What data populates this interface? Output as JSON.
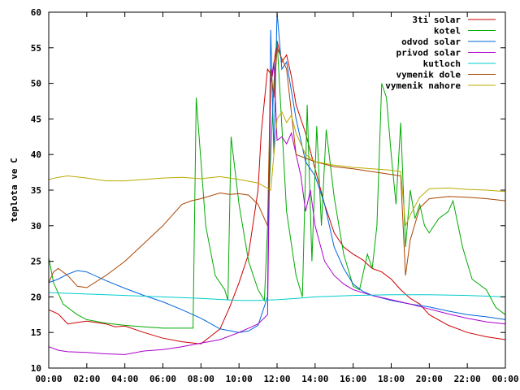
{
  "chart_data": {
    "type": "line",
    "title": "",
    "xlabel": "",
    "ylabel": "teplota ve C",
    "xlim": [
      "00:00",
      "24:00"
    ],
    "ylim": [
      10,
      60
    ],
    "x_ticks": [
      "00:00",
      "02:00",
      "04:00",
      "06:00",
      "08:00",
      "10:00",
      "12:00",
      "14:00",
      "16:00",
      "18:00",
      "20:00",
      "22:00",
      "00:00"
    ],
    "y_ticks": [
      "10",
      "15",
      "20",
      "25",
      "30",
      "35",
      "40",
      "45",
      "50",
      "55",
      "60"
    ],
    "grid": false,
    "legend_position": "top-right",
    "series": [
      {
        "name": "3ti solar",
        "color": "#cc0000",
        "points": [
          [
            "00:00",
            18.2
          ],
          [
            "00:30",
            17.6
          ],
          [
            "01:00",
            16.2
          ],
          [
            "01:30",
            16.4
          ],
          [
            "02:00",
            16.6
          ],
          [
            "03:00",
            16.2
          ],
          [
            "03:30",
            15.8
          ],
          [
            "04:00",
            15.9
          ],
          [
            "05:00",
            15.0
          ],
          [
            "06:00",
            14.2
          ],
          [
            "07:00",
            13.7
          ],
          [
            "08:00",
            13.4
          ],
          [
            "09:00",
            15.5
          ],
          [
            "09:30",
            18.5
          ],
          [
            "10:00",
            22.0
          ],
          [
            "10:30",
            26.0
          ],
          [
            "11:00",
            35.0
          ],
          [
            "11:10",
            43.0
          ],
          [
            "11:30",
            52.0
          ],
          [
            "11:45",
            51.0
          ],
          [
            "12:00",
            56.0
          ],
          [
            "12:15",
            53.0
          ],
          [
            "12:30",
            54.0
          ],
          [
            "12:45",
            51.0
          ],
          [
            "13:00",
            47.0
          ],
          [
            "13:30",
            43.0
          ],
          [
            "14:00",
            38.0
          ],
          [
            "14:30",
            33.0
          ],
          [
            "15:00",
            29.0
          ],
          [
            "15:30",
            27.0
          ],
          [
            "16:00",
            26.0
          ],
          [
            "16:30",
            25.2
          ],
          [
            "17:00",
            24.0
          ],
          [
            "17:30",
            23.5
          ],
          [
            "18:00",
            22.5
          ],
          [
            "18:30",
            21.0
          ],
          [
            "19:00",
            19.8
          ],
          [
            "19:30",
            19.0
          ],
          [
            "20:00",
            17.5
          ],
          [
            "21:00",
            16.0
          ],
          [
            "22:00",
            15.0
          ],
          [
            "23:00",
            14.4
          ],
          [
            "24:00",
            14.0
          ]
        ]
      },
      {
        "name": "kotel",
        "color": "#00aa00",
        "points": [
          [
            "00:00",
            25.5
          ],
          [
            "00:15",
            22.0
          ],
          [
            "00:45",
            19.0
          ],
          [
            "01:30",
            17.5
          ],
          [
            "02:00",
            16.8
          ],
          [
            "03:00",
            16.3
          ],
          [
            "04:00",
            16.0
          ],
          [
            "05:00",
            15.8
          ],
          [
            "06:00",
            15.6
          ],
          [
            "07:00",
            15.6
          ],
          [
            "07:35",
            15.6
          ],
          [
            "07:45",
            48.0
          ],
          [
            "08:15",
            30.0
          ],
          [
            "08:45",
            23.0
          ],
          [
            "09:15",
            21.0
          ],
          [
            "09:25",
            19.5
          ],
          [
            "09:35",
            42.5
          ],
          [
            "10:00",
            33.0
          ],
          [
            "10:30",
            25.0
          ],
          [
            "11:00",
            21.0
          ],
          [
            "11:20",
            19.5
          ],
          [
            "11:40",
            40.0
          ],
          [
            "11:50",
            50.0
          ],
          [
            "12:00",
            56.0
          ],
          [
            "12:15",
            44.0
          ],
          [
            "12:30",
            32.0
          ],
          [
            "13:00",
            23.0
          ],
          [
            "13:20",
            20.0
          ],
          [
            "13:35",
            47.0
          ],
          [
            "13:50",
            25.0
          ],
          [
            "14:05",
            44.0
          ],
          [
            "14:20",
            30.0
          ],
          [
            "14:35",
            43.5
          ],
          [
            "15:00",
            34.0
          ],
          [
            "15:30",
            26.0
          ],
          [
            "16:00",
            21.5
          ],
          [
            "16:20",
            21.0
          ],
          [
            "16:45",
            26.0
          ],
          [
            "17:00",
            24.0
          ],
          [
            "17:15",
            30.0
          ],
          [
            "17:30",
            50.0
          ],
          [
            "17:45",
            48.0
          ],
          [
            "18:00",
            40.0
          ],
          [
            "18:15",
            33.0
          ],
          [
            "18:30",
            44.5
          ],
          [
            "18:45",
            27.0
          ],
          [
            "19:00",
            35.0
          ],
          [
            "19:15",
            31.0
          ],
          [
            "19:30",
            33.0
          ],
          [
            "19:45",
            30.0
          ],
          [
            "20:00",
            29.0
          ],
          [
            "20:30",
            31.0
          ],
          [
            "21:00",
            32.0
          ],
          [
            "21:15",
            33.5
          ],
          [
            "21:45",
            27.0
          ],
          [
            "22:15",
            22.5
          ],
          [
            "23:00",
            21.0
          ],
          [
            "23:30",
            18.5
          ],
          [
            "24:00",
            17.5
          ]
        ]
      },
      {
        "name": "odvod solar",
        "color": "#0066dd",
        "points": [
          [
            "00:00",
            22.0
          ],
          [
            "00:30",
            22.5
          ],
          [
            "01:00",
            23.2
          ],
          [
            "01:30",
            23.7
          ],
          [
            "02:00",
            23.5
          ],
          [
            "03:00",
            22.3
          ],
          [
            "04:00",
            21.2
          ],
          [
            "05:00",
            20.2
          ],
          [
            "06:00",
            19.3
          ],
          [
            "07:00",
            18.2
          ],
          [
            "08:00",
            17.0
          ],
          [
            "09:00",
            15.5
          ],
          [
            "10:00",
            15.0
          ],
          [
            "10:30",
            15.2
          ],
          [
            "11:00",
            16.0
          ],
          [
            "11:30",
            20.0
          ],
          [
            "11:40",
            57.5
          ],
          [
            "11:50",
            40.0
          ],
          [
            "12:00",
            60.0
          ],
          [
            "12:15",
            52.0
          ],
          [
            "12:30",
            53.0
          ],
          [
            "13:00",
            45.0
          ],
          [
            "13:30",
            39.0
          ],
          [
            "14:00",
            37.0
          ],
          [
            "14:30",
            33.0
          ],
          [
            "15:00",
            27.0
          ],
          [
            "15:30",
            24.0
          ],
          [
            "16:00",
            21.8
          ],
          [
            "16:30",
            20.8
          ],
          [
            "17:00",
            20.2
          ],
          [
            "18:00",
            19.5
          ],
          [
            "19:00",
            19.0
          ],
          [
            "20:00",
            18.6
          ],
          [
            "21:00",
            18.0
          ],
          [
            "22:00",
            17.5
          ],
          [
            "23:00",
            17.2
          ],
          [
            "24:00",
            16.8
          ]
        ]
      },
      {
        "name": "privod solar",
        "color": "#aa00cc",
        "points": [
          [
            "00:00",
            13.0
          ],
          [
            "00:30",
            12.5
          ],
          [
            "01:00",
            12.3
          ],
          [
            "02:00",
            12.2
          ],
          [
            "03:00",
            12.0
          ],
          [
            "04:00",
            11.9
          ],
          [
            "05:00",
            12.4
          ],
          [
            "06:00",
            12.6
          ],
          [
            "07:00",
            13.0
          ],
          [
            "08:00",
            13.5
          ],
          [
            "09:00",
            14.0
          ],
          [
            "10:00",
            15.0
          ],
          [
            "11:00",
            16.2
          ],
          [
            "11:30",
            17.5
          ],
          [
            "11:40",
            50.0
          ],
          [
            "11:50",
            53.0
          ],
          [
            "12:00",
            42.0
          ],
          [
            "12:15",
            42.5
          ],
          [
            "12:30",
            41.5
          ],
          [
            "12:45",
            43.0
          ],
          [
            "13:00",
            40.0
          ],
          [
            "13:15",
            37.0
          ],
          [
            "13:30",
            32.0
          ],
          [
            "13:45",
            35.0
          ],
          [
            "14:00",
            30.0
          ],
          [
            "14:30",
            25.0
          ],
          [
            "15:00",
            23.0
          ],
          [
            "15:30",
            21.8
          ],
          [
            "16:00",
            21.0
          ],
          [
            "17:00",
            20.2
          ],
          [
            "18:00",
            19.6
          ],
          [
            "19:00",
            19.0
          ],
          [
            "20:00",
            18.3
          ],
          [
            "21:00",
            17.6
          ],
          [
            "22:00",
            17.0
          ],
          [
            "23:00",
            16.5
          ],
          [
            "24:00",
            16.2
          ]
        ]
      },
      {
        "name": "kutloch",
        "color": "#00cccc",
        "points": [
          [
            "00:00",
            20.6
          ],
          [
            "02:00",
            20.4
          ],
          [
            "04:00",
            20.2
          ],
          [
            "06:00",
            20.0
          ],
          [
            "08:00",
            19.8
          ],
          [
            "10:00",
            19.5
          ],
          [
            "11:00",
            19.5
          ],
          [
            "12:00",
            19.6
          ],
          [
            "13:00",
            19.8
          ],
          [
            "14:00",
            20.0
          ],
          [
            "16:00",
            20.2
          ],
          [
            "18:00",
            20.3
          ],
          [
            "20:00",
            20.3
          ],
          [
            "22:00",
            20.2
          ],
          [
            "24:00",
            20.0
          ]
        ]
      },
      {
        "name": "vymenik dole",
        "color": "#aa4400",
        "points": [
          [
            "00:00",
            22.0
          ],
          [
            "00:15",
            23.5
          ],
          [
            "00:30",
            24.0
          ],
          [
            "01:00",
            23.0
          ],
          [
            "01:30",
            21.5
          ],
          [
            "02:00",
            21.3
          ],
          [
            "03:00",
            23.0
          ],
          [
            "04:00",
            25.0
          ],
          [
            "05:00",
            27.5
          ],
          [
            "06:00",
            30.0
          ],
          [
            "07:00",
            33.0
          ],
          [
            "07:30",
            33.5
          ],
          [
            "08:00",
            33.8
          ],
          [
            "09:00",
            34.6
          ],
          [
            "09:30",
            34.4
          ],
          [
            "10:00",
            34.5
          ],
          [
            "10:30",
            34.3
          ],
          [
            "11:00",
            33.0
          ],
          [
            "11:30",
            30.0
          ],
          [
            "11:40",
            52.0
          ],
          [
            "11:50",
            48.0
          ],
          [
            "12:00",
            55.0
          ],
          [
            "12:30",
            52.0
          ],
          [
            "13:00",
            40.0
          ],
          [
            "13:30",
            39.5
          ],
          [
            "14:00",
            39.0
          ],
          [
            "15:00",
            38.3
          ],
          [
            "16:00",
            38.0
          ],
          [
            "17:00",
            37.6
          ],
          [
            "18:00",
            37.2
          ],
          [
            "18:30",
            37.0
          ],
          [
            "18:45",
            23.0
          ],
          [
            "19:00",
            28.0
          ],
          [
            "19:30",
            32.5
          ],
          [
            "20:00",
            33.8
          ],
          [
            "21:00",
            34.1
          ],
          [
            "22:00",
            34.0
          ],
          [
            "23:00",
            33.8
          ],
          [
            "24:00",
            33.5
          ]
        ]
      },
      {
        "name": "vymenik nahore",
        "color": "#bbaa00",
        "points": [
          [
            "00:00",
            36.5
          ],
          [
            "00:30",
            36.8
          ],
          [
            "01:00",
            37.0
          ],
          [
            "02:00",
            36.7
          ],
          [
            "03:00",
            36.3
          ],
          [
            "04:00",
            36.3
          ],
          [
            "05:00",
            36.5
          ],
          [
            "06:00",
            36.7
          ],
          [
            "07:00",
            36.8
          ],
          [
            "08:00",
            36.6
          ],
          [
            "09:00",
            36.9
          ],
          [
            "10:00",
            36.5
          ],
          [
            "11:00",
            36.0
          ],
          [
            "11:40",
            35.0
          ],
          [
            "12:00",
            45.0
          ],
          [
            "12:15",
            46.0
          ],
          [
            "12:30",
            44.5
          ],
          [
            "12:45",
            45.5
          ],
          [
            "13:00",
            43.0
          ],
          [
            "13:30",
            40.0
          ],
          [
            "14:00",
            39.0
          ],
          [
            "15:00",
            38.5
          ],
          [
            "16:00",
            38.2
          ],
          [
            "17:00",
            38.0
          ],
          [
            "18:00",
            37.8
          ],
          [
            "18:30",
            37.6
          ],
          [
            "18:45",
            30.0
          ],
          [
            "19:00",
            31.5
          ],
          [
            "19:30",
            34.0
          ],
          [
            "20:00",
            35.2
          ],
          [
            "21:00",
            35.3
          ],
          [
            "22:00",
            35.1
          ],
          [
            "23:00",
            35.0
          ],
          [
            "24:00",
            34.8
          ]
        ]
      }
    ]
  }
}
